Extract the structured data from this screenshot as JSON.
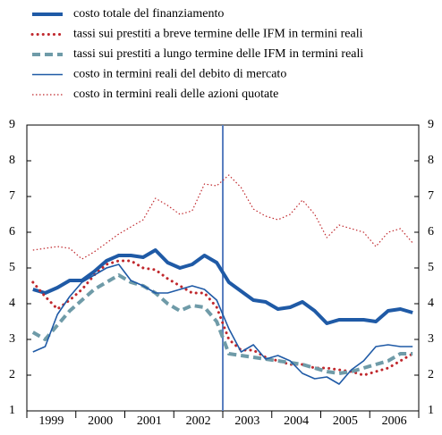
{
  "chart_data": {
    "type": "line",
    "categories": [
      "1999",
      null,
      null,
      null,
      "2000",
      null,
      null,
      null,
      "2001",
      null,
      null,
      null,
      "2002",
      null,
      null,
      null,
      "2003",
      null,
      null,
      null,
      "2004",
      null,
      null,
      null,
      "2005",
      null,
      null,
      null,
      "2006",
      null,
      null,
      null
    ],
    "series": [
      {
        "name": "costo totale del finanziamento",
        "color": "#1f5aa6",
        "style": "thick",
        "values": [
          4.4,
          4.3,
          4.45,
          4.65,
          4.65,
          4.9,
          5.2,
          5.35,
          5.35,
          5.3,
          5.5,
          5.15,
          5.0,
          5.1,
          5.35,
          5.15,
          4.6,
          4.35,
          4.1,
          4.05,
          3.85,
          3.9,
          4.05,
          3.8,
          3.45,
          3.55,
          3.55,
          3.55,
          3.5,
          3.8,
          3.85,
          3.75
        ]
      },
      {
        "name": "tassi sui prestiti a breve termine delle IFM in termini reali",
        "color": "#c0282d",
        "style": "dotted",
        "values": [
          4.6,
          4.2,
          3.85,
          4.1,
          4.4,
          4.8,
          5.1,
          5.2,
          5.2,
          5.0,
          4.95,
          4.7,
          4.5,
          4.3,
          4.3,
          3.9,
          3.0,
          2.7,
          2.7,
          2.5,
          2.4,
          2.3,
          2.3,
          2.2,
          2.2,
          2.15,
          2.1,
          2.0,
          2.1,
          2.2,
          2.4,
          2.6
        ]
      },
      {
        "name": "tassi sui prestiti a lungo termine delle IFM in termini reali",
        "color": "#6f9ba8",
        "style": "dashed",
        "values": [
          3.2,
          3.0,
          3.4,
          3.8,
          4.1,
          4.4,
          4.6,
          4.8,
          4.6,
          4.5,
          4.3,
          4.0,
          3.8,
          3.95,
          3.9,
          3.5,
          2.6,
          2.55,
          2.5,
          2.45,
          2.4,
          2.35,
          2.3,
          2.2,
          2.1,
          2.05,
          2.1,
          2.2,
          2.3,
          2.4,
          2.6,
          2.6
        ]
      },
      {
        "name": "costo in termini reali del debito di mercato",
        "color": "#1f5aa6",
        "style": "thin",
        "values": [
          2.65,
          2.8,
          3.7,
          4.2,
          4.6,
          4.8,
          5.0,
          5.1,
          4.65,
          4.5,
          4.3,
          4.3,
          4.4,
          4.5,
          4.4,
          4.1,
          3.3,
          2.65,
          2.85,
          2.45,
          2.55,
          2.4,
          2.05,
          1.9,
          1.95,
          1.75,
          2.15,
          2.4,
          2.8,
          2.85,
          2.8,
          2.8
        ]
      },
      {
        "name": "costo in termini reali delle azioni quotate",
        "color": "#c0282d",
        "style": "thindotted",
        "values": [
          5.5,
          5.55,
          5.6,
          5.55,
          5.25,
          5.45,
          5.7,
          5.95,
          6.15,
          6.35,
          6.95,
          6.75,
          6.5,
          6.6,
          7.35,
          7.3,
          7.6,
          7.25,
          6.65,
          6.45,
          6.35,
          6.5,
          6.9,
          6.5,
          5.85,
          6.2,
          6.1,
          6.0,
          5.6,
          6.0,
          6.1,
          5.7
        ]
      }
    ],
    "ylim": [
      1,
      9
    ],
    "yticks": [
      1,
      2,
      3,
      4,
      5,
      6,
      7,
      8,
      9
    ]
  }
}
